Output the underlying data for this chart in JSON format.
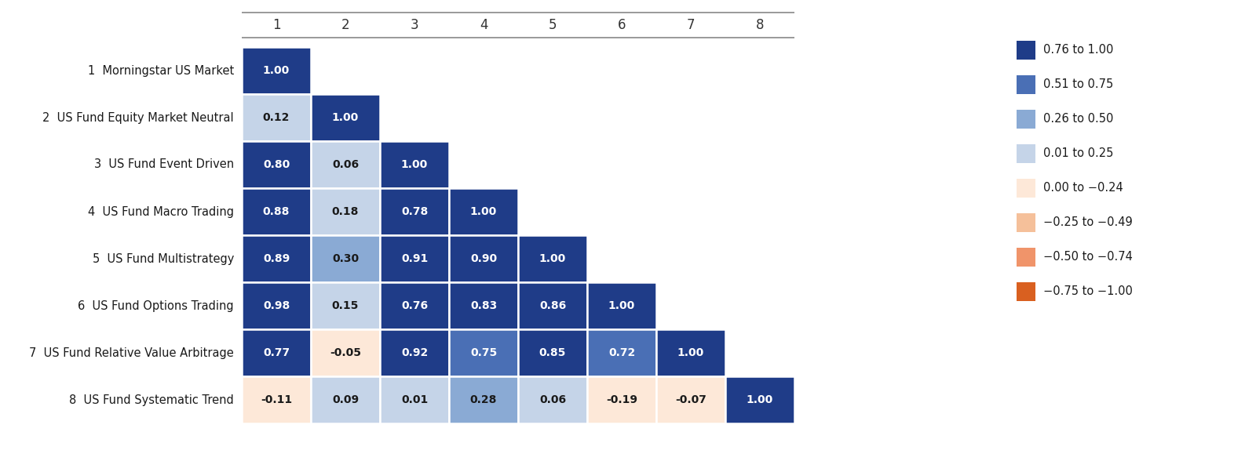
{
  "labels": [
    "1  Morningstar US Market",
    "2  US Fund Equity Market Neutral",
    "3  US Fund Event Driven",
    "4  US Fund Macro Trading",
    "5  US Fund Multistrategy",
    "6  US Fund Options Trading",
    "7  US Fund Relative Value Arbitrage",
    "8  US Fund Systematic Trend"
  ],
  "col_labels": [
    "1",
    "2",
    "3",
    "4",
    "5",
    "6",
    "7",
    "8"
  ],
  "matrix": [
    [
      1.0,
      null,
      null,
      null,
      null,
      null,
      null,
      null
    ],
    [
      0.12,
      1.0,
      null,
      null,
      null,
      null,
      null,
      null
    ],
    [
      0.8,
      0.06,
      1.0,
      null,
      null,
      null,
      null,
      null
    ],
    [
      0.88,
      0.18,
      0.78,
      1.0,
      null,
      null,
      null,
      null
    ],
    [
      0.89,
      0.3,
      0.91,
      0.9,
      1.0,
      null,
      null,
      null
    ],
    [
      0.98,
      0.15,
      0.76,
      0.83,
      0.86,
      1.0,
      null,
      null
    ],
    [
      0.77,
      -0.05,
      0.92,
      0.75,
      0.85,
      0.72,
      1.0,
      null
    ],
    [
      -0.11,
      0.09,
      0.01,
      0.28,
      0.06,
      -0.19,
      -0.07,
      1.0
    ]
  ],
  "legend_labels": [
    "0.76 to 1.00",
    "0.51 to 0.75",
    "0.26 to 0.50",
    "0.01 to 0.25",
    "0.00 to −0.24",
    "−0.25 to −0.49",
    "−0.50 to −0.74",
    "−0.75 to −1.00"
  ],
  "legend_colors": [
    "#1f3c88",
    "#4a6fb5",
    "#8aaad4",
    "#c5d4e8",
    "#fde8d8",
    "#f5c09a",
    "#f0946a",
    "#d96020"
  ],
  "background_color": "#ffffff"
}
